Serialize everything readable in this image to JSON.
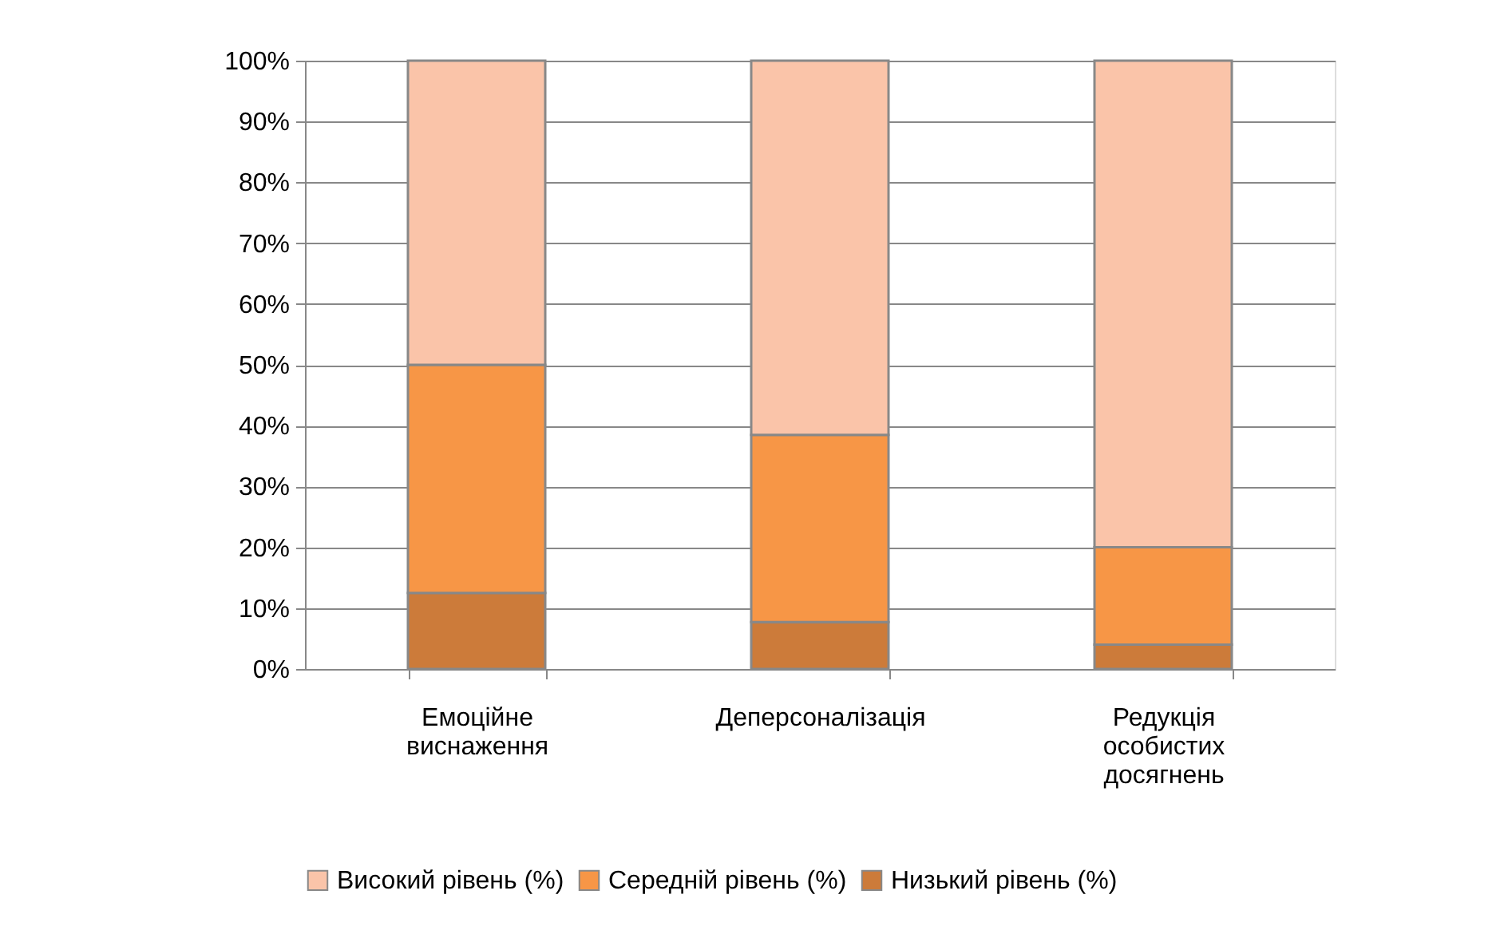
{
  "chart_data": {
    "type": "bar",
    "stacked": true,
    "categories": [
      "Емоційне виснаження",
      "Деперсоналізація",
      "Редукція особистих досягнень"
    ],
    "series": [
      {
        "name": "Низький рівень (%)",
        "color": "#cc7b3a",
        "values": [
          12.5,
          7.7,
          4
        ]
      },
      {
        "name": "Середній рівень (%)",
        "color": "#f79646",
        "values": [
          37.5,
          30.8,
          16
        ]
      },
      {
        "name": "Високий рівень (%)",
        "color": "#fac4a9",
        "values": [
          50,
          61.5,
          80
        ]
      }
    ],
    "ylim": [
      0,
      100
    ],
    "yticks": [
      {
        "value": 0,
        "label": "0%"
      },
      {
        "value": 10,
        "label": "10%"
      },
      {
        "value": 20,
        "label": "20%"
      },
      {
        "value": 30,
        "label": "30%"
      },
      {
        "value": 40,
        "label": "40%"
      },
      {
        "value": 50,
        "label": "50%"
      },
      {
        "value": 60,
        "label": "60%"
      },
      {
        "value": 70,
        "label": "70%"
      },
      {
        "value": 80,
        "label": "80%"
      },
      {
        "value": 90,
        "label": "90%"
      },
      {
        "value": 100,
        "label": "100%"
      }
    ],
    "grid": "y",
    "legend": "bottom"
  }
}
